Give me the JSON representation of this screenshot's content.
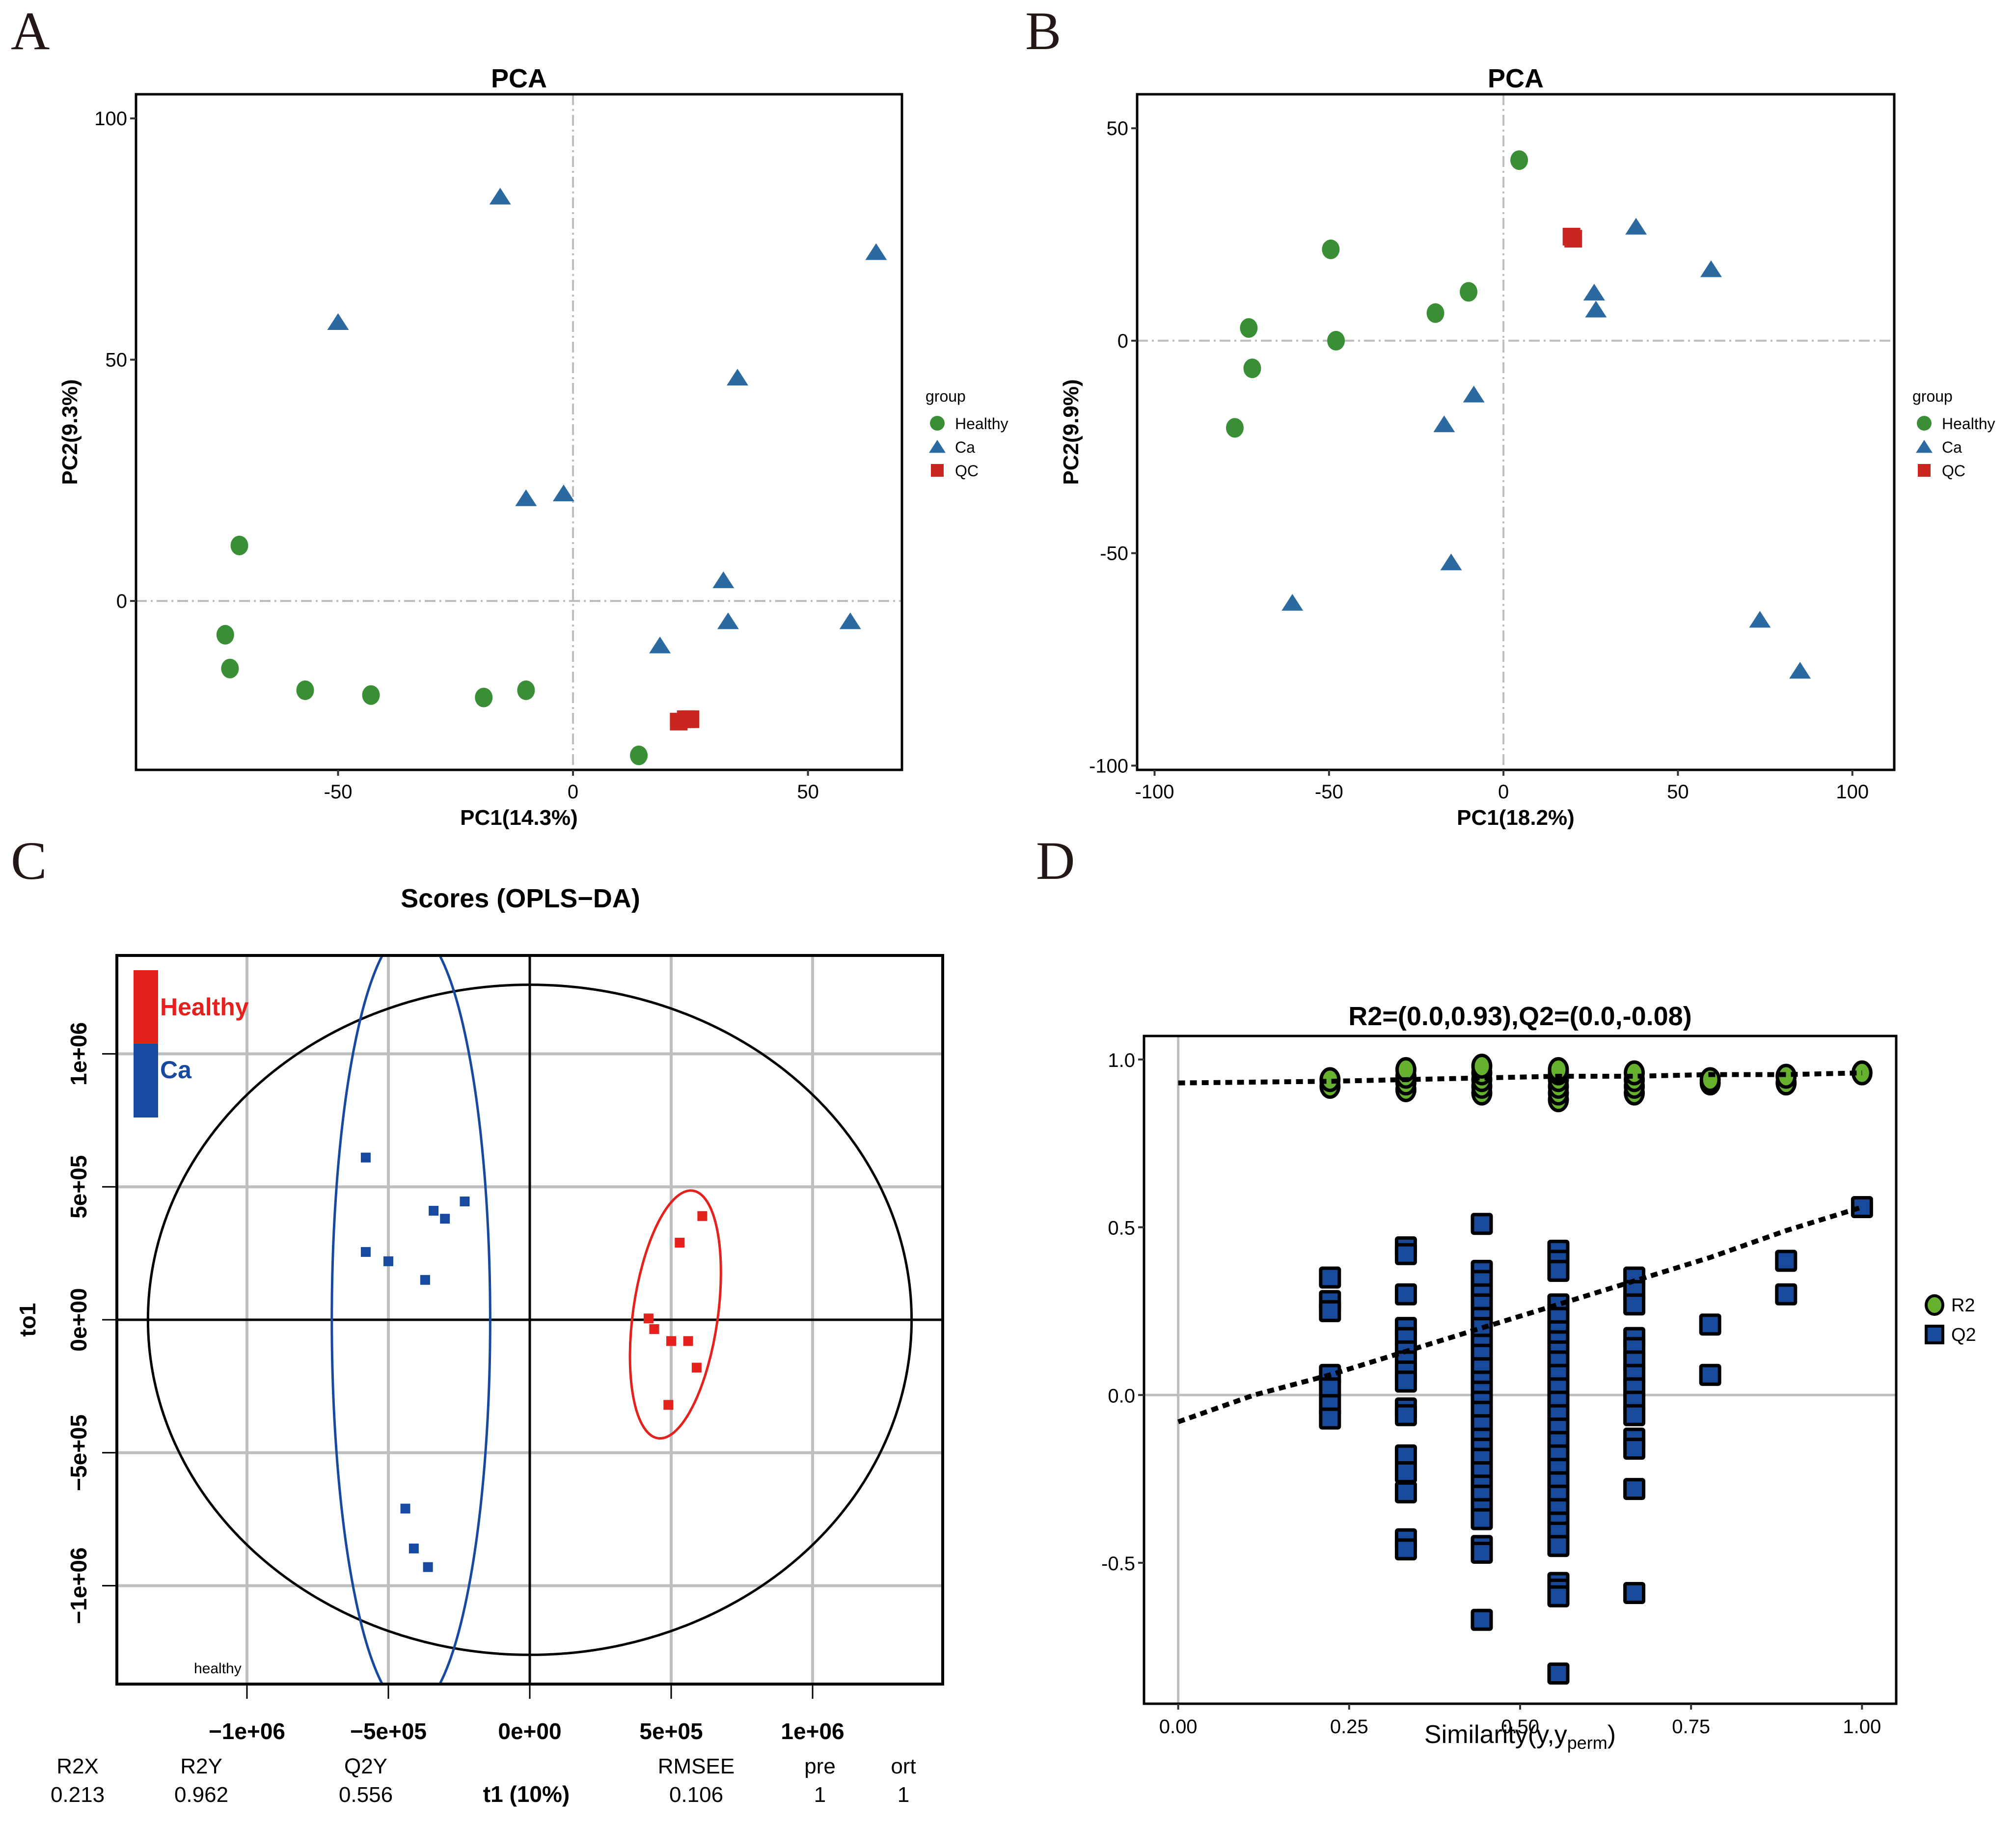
{
  "chart_data": [
    {
      "id": "A",
      "panel_label": "A",
      "type": "scatter",
      "title": "PCA",
      "xlabel": "PC1(14.3%)",
      "ylabel": "PC2(9.3%)",
      "xlim": [
        -93,
        70
      ],
      "ylim": [
        -35,
        105
      ],
      "xticks": [
        -50,
        0,
        50
      ],
      "yticks": [
        0,
        50,
        100
      ],
      "reference_lines": {
        "x": 0,
        "y": 0
      },
      "legend": {
        "title": "group",
        "position": "right",
        "entries": [
          "Healthy",
          "Ca",
          "QC"
        ]
      },
      "colors": {
        "Healthy": "#3a8f36",
        "Ca": "#2a6aa0",
        "QC": "#c8261f"
      },
      "series": [
        {
          "name": "Healthy",
          "marker": "circle",
          "points": [
            [
              -71,
              11.5
            ],
            [
              -74,
              -7
            ],
            [
              -73,
              -14
            ],
            [
              -57,
              -18.5
            ],
            [
              -43,
              -19.5
            ],
            [
              -19,
              -20
            ],
            [
              -10,
              -18.5
            ],
            [
              14,
              -32
            ]
          ]
        },
        {
          "name": "Ca",
          "marker": "triangle",
          "points": [
            [
              -15.5,
              83.5
            ],
            [
              -50,
              57.5
            ],
            [
              64.5,
              72
            ],
            [
              35,
              46
            ],
            [
              -10,
              21
            ],
            [
              -2,
              22
            ],
            [
              32,
              4
            ],
            [
              33,
              -4.5
            ],
            [
              59,
              -4.5
            ],
            [
              18.5,
              -9.5
            ]
          ]
        },
        {
          "name": "QC",
          "marker": "square",
          "points": [
            [
              22.5,
              -25
            ],
            [
              24,
              -24.5
            ],
            [
              25,
              -24.5
            ]
          ]
        }
      ]
    },
    {
      "id": "B",
      "panel_label": "B",
      "type": "scatter",
      "title": "PCA",
      "xlabel": "PC1(18.2%)",
      "ylabel": "PC2(9.9%)",
      "xlim": [
        -105,
        112
      ],
      "ylim": [
        -101,
        58
      ],
      "xticks": [
        -100,
        -50,
        0,
        50,
        100
      ],
      "yticks": [
        -100,
        -50,
        0,
        50
      ],
      "reference_lines": {
        "x": 0,
        "y": 0
      },
      "legend": {
        "title": "group",
        "position": "right",
        "entries": [
          "Healthy",
          "Ca",
          "QC"
        ]
      },
      "colors": {
        "Healthy": "#3a8f36",
        "Ca": "#2a6aa0",
        "QC": "#c8261f"
      },
      "series": [
        {
          "name": "Healthy",
          "marker": "circle",
          "points": [
            [
              4.5,
              42.5
            ],
            [
              -49.5,
              21.5
            ],
            [
              -10,
              11.5
            ],
            [
              -19.5,
              6.5
            ],
            [
              -73,
              3
            ],
            [
              -48,
              0
            ],
            [
              -72,
              -6.5
            ],
            [
              -77,
              -20.5
            ]
          ]
        },
        {
          "name": "Ca",
          "marker": "triangle",
          "points": [
            [
              38,
              26.5
            ],
            [
              59.5,
              16.5
            ],
            [
              26,
              11
            ],
            [
              26.5,
              7
            ],
            [
              -8.5,
              -13
            ],
            [
              -17,
              -20
            ],
            [
              -15,
              -52.5
            ],
            [
              -60.5,
              -62
            ],
            [
              73.5,
              -66
            ],
            [
              85,
              -78
            ]
          ]
        },
        {
          "name": "QC",
          "marker": "square",
          "points": [
            [
              19.5,
              24.5
            ],
            [
              20,
              24
            ]
          ]
        }
      ]
    },
    {
      "id": "C",
      "panel_label": "C",
      "type": "scatter",
      "title": "Scores (OPLS−DA)",
      "xlabel": "t1 (10%)",
      "ylabel": "to1",
      "xlim": [
        -1460000,
        1460000
      ],
      "ylim": [
        -1370000,
        1370000
      ],
      "xticks": [
        -1000000,
        -500000,
        0,
        500000,
        1000000
      ],
      "xtick_labels": [
        "−1e+06",
        "−5e+05",
        "0e+00",
        "5e+05",
        "1e+06"
      ],
      "yticks": [
        -1000000,
        -500000,
        0,
        500000,
        1000000
      ],
      "ytick_labels": [
        "−1e+06",
        "−5e+05",
        "0e+00",
        "5e+05",
        "1e+06"
      ],
      "grid": true,
      "legend": {
        "position": "top-left",
        "entries": [
          "Healthy",
          "Ca"
        ]
      },
      "colors": {
        "Healthy": "#e4211c",
        "Ca": "#1749a0"
      },
      "annotation": "healthy",
      "series": [
        {
          "name": "Ca",
          "marker": "square",
          "points": [
            [
              -580000,
              610000
            ],
            [
              -580000,
              255000
            ],
            [
              -500000,
              220000
            ],
            [
              -340000,
              410000
            ],
            [
              -300000,
              380000
            ],
            [
              -230000,
              445000
            ],
            [
              -370000,
              150000
            ],
            [
              -440000,
              -710000
            ],
            [
              -410000,
              -860000
            ],
            [
              -360000,
              -930000
            ]
          ]
        },
        {
          "name": "Healthy",
          "marker": "square",
          "points": [
            [
              610000,
              390000
            ],
            [
              530000,
              290000
            ],
            [
              420000,
              5000
            ],
            [
              440000,
              -35000
            ],
            [
              500000,
              -80000
            ],
            [
              560000,
              -80000
            ],
            [
              590000,
              -180000
            ],
            [
              490000,
              -320000
            ]
          ]
        }
      ],
      "ellipses": [
        {
          "name": "T2 global",
          "color": "#000000",
          "center": [
            0,
            0
          ],
          "rx": 1350000,
          "ry": 1260000
        },
        {
          "name": "Ca",
          "color": "#1749a0",
          "center": [
            -420000,
            0
          ],
          "rx": 280000,
          "ry": 1470000
        },
        {
          "name": "Healthy",
          "color": "#e4211c",
          "center": [
            515000,
            20000
          ],
          "rx": 150000,
          "ry": 470000,
          "tilt_deg": 8
        }
      ],
      "stats": {
        "headers": [
          "R2X",
          "R2Y",
          "Q2Y",
          "RMSEE",
          "pre",
          "ort"
        ],
        "values": [
          "0.213",
          "0.962",
          "0.556",
          "0.106",
          "1",
          "1"
        ]
      }
    },
    {
      "id": "D",
      "panel_label": "D",
      "type": "scatter",
      "title": "R2=(0.0,0.93),Q2=(0.0,-0.08)",
      "xlabel": "Similarity(y,y",
      "xlabel_sub": "perm",
      "xlabel_end": ")",
      "ylabel": "",
      "xlim": [
        -0.05,
        1.05
      ],
      "ylim": [
        -0.92,
        1.07
      ],
      "xticks": [
        0.0,
        0.25,
        0.5,
        0.75,
        1.0
      ],
      "xtick_labels": [
        "0.00",
        "0.25",
        "0.50",
        "0.75",
        "1.00"
      ],
      "yticks": [
        -0.5,
        0.0,
        0.5,
        1.0
      ],
      "ytick_labels": [
        "-0.5",
        "0.0",
        "0.5",
        "1.0"
      ],
      "reference_lines": {
        "x": 0,
        "y": 0
      },
      "legend": {
        "position": "right",
        "entries": [
          "R2",
          "Q2"
        ]
      },
      "colors": {
        "R2": "#66b22e",
        "Q2": "#184a9c"
      },
      "series": [
        {
          "name": "R2",
          "marker": "circle",
          "points": [
            [
              0.222,
              0.92
            ],
            [
              0.222,
              0.94
            ],
            [
              0.333,
              0.91
            ],
            [
              0.333,
              0.93
            ],
            [
              0.333,
              0.95
            ],
            [
              0.333,
              0.97
            ],
            [
              0.444,
              0.9
            ],
            [
              0.444,
              0.92
            ],
            [
              0.444,
              0.94
            ],
            [
              0.444,
              0.96
            ],
            [
              0.444,
              0.98
            ],
            [
              0.556,
              0.88
            ],
            [
              0.556,
              0.9
            ],
            [
              0.556,
              0.92
            ],
            [
              0.556,
              0.94
            ],
            [
              0.556,
              0.96
            ],
            [
              0.556,
              0.97
            ],
            [
              0.667,
              0.9
            ],
            [
              0.667,
              0.92
            ],
            [
              0.667,
              0.94
            ],
            [
              0.667,
              0.96
            ],
            [
              0.778,
              0.93
            ],
            [
              0.778,
              0.94
            ],
            [
              0.889,
              0.93
            ],
            [
              0.889,
              0.95
            ],
            [
              1.0,
              0.96
            ]
          ]
        },
        {
          "name": "Q2",
          "marker": "square",
          "points": [
            [
              0.222,
              0.35
            ],
            [
              0.222,
              0.28
            ],
            [
              0.222,
              0.25
            ],
            [
              0.222,
              0.06
            ],
            [
              0.222,
              0.02
            ],
            [
              0.222,
              -0.03
            ],
            [
              0.222,
              -0.07
            ],
            [
              0.333,
              0.44
            ],
            [
              0.333,
              0.42
            ],
            [
              0.333,
              0.3
            ],
            [
              0.333,
              0.2
            ],
            [
              0.333,
              0.17
            ],
            [
              0.333,
              0.13
            ],
            [
              0.333,
              0.1
            ],
            [
              0.333,
              0.07
            ],
            [
              0.333,
              0.04
            ],
            [
              0.333,
              -0.04
            ],
            [
              0.333,
              -0.06
            ],
            [
              0.333,
              -0.18
            ],
            [
              0.333,
              -0.23
            ],
            [
              0.333,
              -0.29
            ],
            [
              0.333,
              -0.43
            ],
            [
              0.333,
              -0.46
            ],
            [
              0.444,
              0.51
            ],
            [
              0.444,
              0.37
            ],
            [
              0.444,
              0.34
            ],
            [
              0.444,
              0.3
            ],
            [
              0.444,
              0.27
            ],
            [
              0.444,
              0.23
            ],
            [
              0.444,
              0.2
            ],
            [
              0.444,
              0.15
            ],
            [
              0.444,
              0.12
            ],
            [
              0.444,
              0.08
            ],
            [
              0.444,
              0.04
            ],
            [
              0.444,
              0.01
            ],
            [
              0.444,
              -0.02
            ],
            [
              0.444,
              -0.05
            ],
            [
              0.444,
              -0.09
            ],
            [
              0.444,
              -0.13
            ],
            [
              0.444,
              -0.16
            ],
            [
              0.444,
              -0.19
            ],
            [
              0.444,
              -0.23
            ],
            [
              0.444,
              -0.27
            ],
            [
              0.444,
              -0.3
            ],
            [
              0.444,
              -0.34
            ],
            [
              0.444,
              -0.37
            ],
            [
              0.444,
              -0.45
            ],
            [
              0.444,
              -0.47
            ],
            [
              0.444,
              -0.67
            ],
            [
              0.556,
              0.43
            ],
            [
              0.556,
              0.4
            ],
            [
              0.556,
              0.37
            ],
            [
              0.556,
              0.27
            ],
            [
              0.556,
              0.23
            ],
            [
              0.556,
              0.19
            ],
            [
              0.556,
              0.16
            ],
            [
              0.556,
              0.13
            ],
            [
              0.556,
              0.1
            ],
            [
              0.556,
              0.06
            ],
            [
              0.556,
              0.02
            ],
            [
              0.556,
              -0.02
            ],
            [
              0.556,
              -0.06
            ],
            [
              0.556,
              -0.1
            ],
            [
              0.556,
              -0.14
            ],
            [
              0.556,
              -0.18
            ],
            [
              0.556,
              -0.22
            ],
            [
              0.556,
              -0.26
            ],
            [
              0.556,
              -0.3
            ],
            [
              0.556,
              -0.34
            ],
            [
              0.556,
              -0.38
            ],
            [
              0.556,
              -0.41
            ],
            [
              0.556,
              -0.45
            ],
            [
              0.556,
              -0.56
            ],
            [
              0.556,
              -0.58
            ],
            [
              0.556,
              -0.6
            ],
            [
              0.556,
              -0.83
            ],
            [
              0.667,
              0.35
            ],
            [
              0.667,
              0.31
            ],
            [
              0.667,
              0.27
            ],
            [
              0.667,
              0.17
            ],
            [
              0.667,
              0.14
            ],
            [
              0.667,
              0.1
            ],
            [
              0.667,
              0.06
            ],
            [
              0.667,
              0.02
            ],
            [
              0.667,
              -0.02
            ],
            [
              0.667,
              -0.06
            ],
            [
              0.667,
              -0.13
            ],
            [
              0.667,
              -0.16
            ],
            [
              0.667,
              -0.28
            ],
            [
              0.667,
              -0.59
            ],
            [
              0.778,
              0.21
            ],
            [
              0.778,
              0.06
            ],
            [
              0.889,
              0.4
            ],
            [
              0.889,
              0.3
            ],
            [
              1.0,
              0.56
            ]
          ]
        }
      ],
      "trend_lines": [
        {
          "name": "R2",
          "intercept": 0.93,
          "points": [
            [
              0.0,
              0.93
            ],
            [
              0.222,
              0.935
            ],
            [
              0.333,
              0.94
            ],
            [
              0.444,
              0.945
            ],
            [
              0.556,
              0.95
            ],
            [
              0.667,
              0.95
            ],
            [
              0.778,
              0.955
            ],
            [
              0.889,
              0.955
            ],
            [
              1.0,
              0.96
            ]
          ]
        },
        {
          "name": "Q2",
          "intercept": -0.08,
          "points": [
            [
              0.0,
              -0.08
            ],
            [
              0.111,
              0.0
            ],
            [
              0.222,
              0.06
            ],
            [
              0.333,
              0.13
            ],
            [
              0.444,
              0.2
            ],
            [
              0.556,
              0.27
            ],
            [
              0.667,
              0.34
            ],
            [
              0.778,
              0.41
            ],
            [
              0.889,
              0.49
            ],
            [
              1.0,
              0.56
            ]
          ]
        }
      ]
    }
  ]
}
